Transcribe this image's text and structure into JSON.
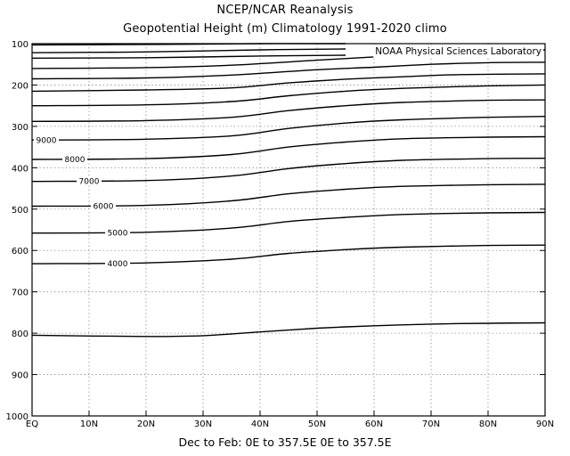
{
  "title_line1": "NCEP/NCAR Reanalysis",
  "title_line2": "Geopotential Height (m) Climatology 1991-2020 climo",
  "credit": "NOAA Physical Sciences Laboratory",
  "footer": "Dec to Feb:  0E to 357.5E  0E to 357.5E",
  "chart_data": {
    "type": "line",
    "subtype": "contour",
    "x_ticks": [
      "EQ",
      "10N",
      "20N",
      "30N",
      "40N",
      "50N",
      "60N",
      "70N",
      "80N",
      "90N"
    ],
    "x_range": [
      0,
      90
    ],
    "y_ticks": [
      100,
      200,
      300,
      400,
      500,
      600,
      700,
      800,
      900,
      1000
    ],
    "y_range": [
      100,
      1000
    ],
    "y_inverted": true,
    "grid": "dotted",
    "line_color": "#000000",
    "contours": [
      {
        "label": "",
        "x": [
          0,
          20,
          40,
          55
        ],
        "y": [
          103,
          102,
          100,
          100
        ]
      },
      {
        "label": "",
        "x": [
          0,
          20,
          40,
          55
        ],
        "y": [
          122,
          120,
          115,
          113
        ]
      },
      {
        "label": "",
        "x": [
          0,
          20,
          40,
          55
        ],
        "y": [
          135,
          134,
          130,
          128
        ]
      },
      {
        "label": "",
        "x": [
          0,
          20,
          35,
          50,
          60,
          70,
          80,
          90
        ],
        "y": [
          160,
          158,
          152,
          140,
          132,
          123,
          118,
          115
        ]
      },
      {
        "label": "",
        "x": [
          0,
          20,
          35,
          50,
          60,
          70,
          80,
          90
        ],
        "y": [
          185,
          183,
          176,
          163,
          157,
          150,
          146,
          145
        ]
      },
      {
        "label": "",
        "x": [
          0,
          20,
          35,
          45,
          55,
          65,
          75,
          90
        ],
        "y": [
          215,
          212,
          207,
          195,
          186,
          180,
          175,
          173
        ]
      },
      {
        "label": "",
        "x": [
          0,
          20,
          35,
          45,
          55,
          65,
          80,
          90
        ],
        "y": [
          250,
          248,
          240,
          226,
          215,
          208,
          202,
          200
        ]
      },
      {
        "label": "",
        "x": [
          0,
          20,
          35,
          45,
          55,
          65,
          80,
          90
        ],
        "y": [
          288,
          286,
          278,
          262,
          250,
          242,
          237,
          236
        ]
      },
      {
        "label": "9000",
        "label_x": 2.5,
        "x": [
          0,
          20,
          35,
          45,
          55,
          65,
          80,
          90
        ],
        "y": [
          333,
          331,
          323,
          305,
          292,
          284,
          278,
          276
        ]
      },
      {
        "label": "",
        "x": [
          0,
          20,
          35,
          45,
          55,
          65,
          80,
          90
        ],
        "y": [
          333,
          331,
          323,
          305,
          292,
          284,
          278,
          276
        ]
      },
      {
        "label": "8000",
        "label_x": 7.5,
        "x": [
          0,
          20,
          35,
          45,
          55,
          65,
          80,
          90
        ],
        "y": [
          380,
          378,
          368,
          350,
          338,
          330,
          326,
          325
        ]
      },
      {
        "label": "7000",
        "label_x": 10,
        "x": [
          0,
          20,
          35,
          45,
          55,
          65,
          80,
          90
        ],
        "y": [
          433,
          431,
          420,
          402,
          390,
          382,
          378,
          377
        ]
      },
      {
        "label": "6000",
        "label_x": 12.5,
        "x": [
          0,
          20,
          35,
          45,
          55,
          65,
          80,
          90
        ],
        "y": [
          493,
          491,
          480,
          463,
          452,
          445,
          441,
          440
        ]
      },
      {
        "label": "5000",
        "label_x": 15,
        "x": [
          0,
          20,
          35,
          45,
          55,
          65,
          80,
          90
        ],
        "y": [
          558,
          556,
          546,
          530,
          520,
          513,
          509,
          508
        ]
      },
      {
        "label": "4000",
        "label_x": 15,
        "x": [
          0,
          20,
          35,
          45,
          55,
          65,
          80,
          90
        ],
        "y": [
          632,
          630,
          621,
          607,
          598,
          592,
          588,
          587
        ]
      },
      {
        "label": "",
        "x": [
          0,
          20,
          30,
          40,
          50,
          60,
          70,
          80,
          90
        ],
        "y": [
          805,
          808,
          806,
          797,
          788,
          782,
          778,
          776,
          775
        ]
      }
    ]
  }
}
